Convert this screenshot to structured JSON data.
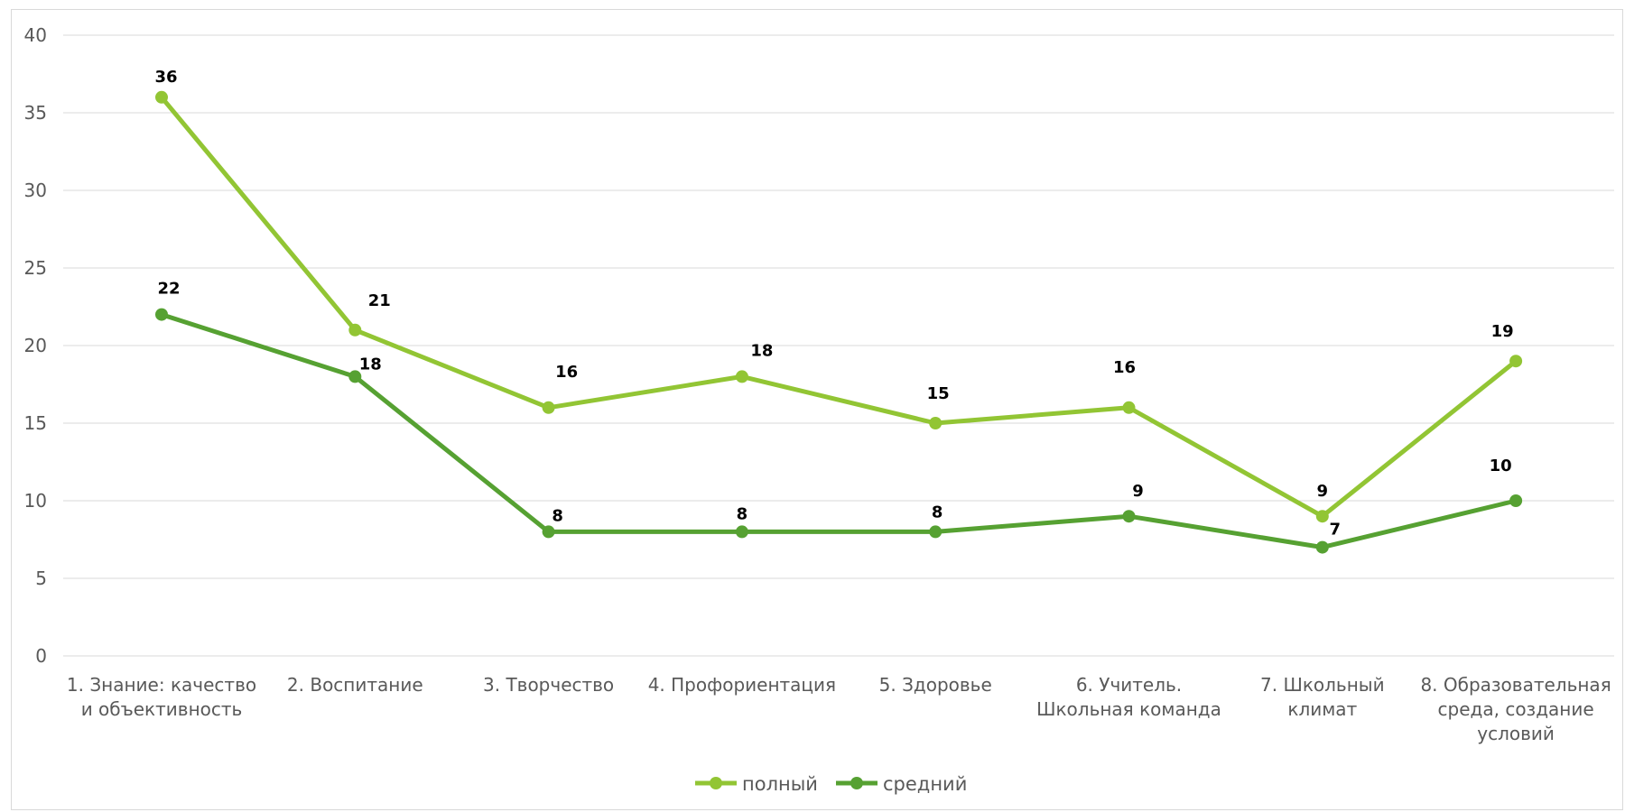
{
  "chart_data": {
    "type": "line",
    "categories": [
      [
        "1. Знание: качество",
        "и объективность"
      ],
      [
        "2. Воспитание"
      ],
      [
        "3. Творчество"
      ],
      [
        "4. Профориентация"
      ],
      [
        "5. Здоровье"
      ],
      [
        "6. Учитель.",
        "Школьная команда"
      ],
      [
        "7. Школьный",
        "климат"
      ],
      [
        "8. Образовательная",
        "среда, создание",
        "условий"
      ]
    ],
    "series": [
      {
        "name": "полный",
        "color": "#92c534",
        "values": [
          36,
          21,
          16,
          18,
          15,
          16,
          9,
          19
        ]
      },
      {
        "name": "средний",
        "color": "#56a132",
        "values": [
          22,
          18,
          8,
          8,
          8,
          9,
          7,
          10
        ]
      }
    ],
    "ylim": [
      0,
      40
    ],
    "yticks": [
      0,
      5,
      10,
      15,
      20,
      25,
      30,
      35,
      40
    ],
    "grid": true,
    "legend": "bottom",
    "data_labels": true
  }
}
